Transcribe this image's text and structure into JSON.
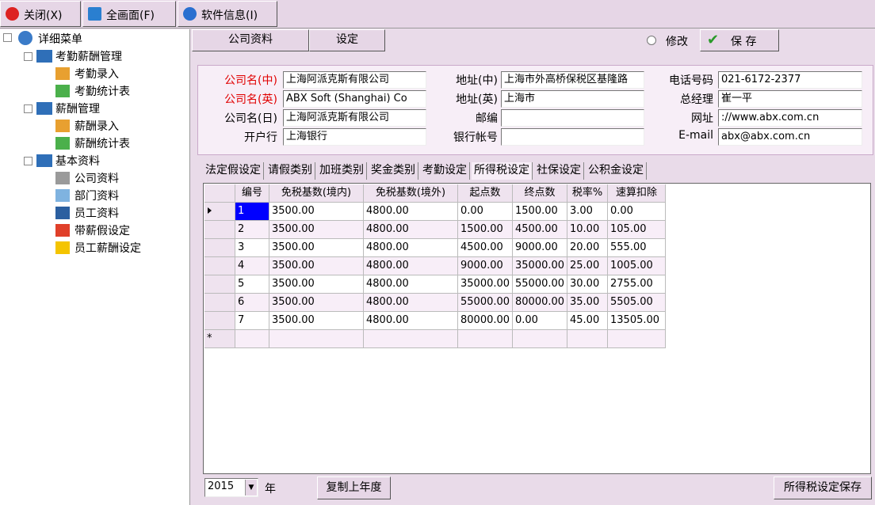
{
  "toolbar": [
    "关闭(X)",
    "全画面(F)",
    "软件信息(I)"
  ],
  "tree": {
    "root": "详细菜单",
    "groups": [
      {
        "label": "考勤薪酬管理",
        "items": [
          "考勤录入",
          "考勤统计表"
        ]
      },
      {
        "label": "薪酬管理",
        "items": [
          "薪酬录入",
          "薪酬统计表"
        ]
      },
      {
        "label": "基本资料",
        "items": [
          "公司资料",
          "部门资料",
          "员工资料",
          "带薪假设定",
          "员工薪酬设定"
        ]
      }
    ]
  },
  "top_tabs": [
    "公司资料",
    "设定"
  ],
  "modify": "修改",
  "save": "保 存",
  "company": {
    "required_color": "#e00000",
    "columns": [
      [
        {
          "label": "公司名(中)",
          "value": "上海阿派克斯有限公司",
          "required": true
        },
        {
          "label": "公司名(英)",
          "value": "ABX Soft (Shanghai) Co",
          "required": true
        },
        {
          "label": "公司名(日)",
          "value": "上海阿派克斯有限公司"
        },
        {
          "label": "开户行",
          "value": "上海银行"
        }
      ],
      [
        {
          "label": "地址(中)",
          "value": "上海市外高桥保税区基隆路"
        },
        {
          "label": "地址(英)",
          "value": "上海市"
        },
        {
          "label": "邮编"
        },
        {
          "label": "银行帐号"
        }
      ],
      [
        {
          "label": "电话号码",
          "value": "021-6172-2377"
        },
        {
          "label": "总经理",
          "value": "崔一平"
        },
        {
          "label": "网址",
          "value": "://www.abx.com.cn"
        },
        {
          "label": "E-mail",
          "value": "abx@abx.com.cn"
        }
      ]
    ]
  },
  "tabs": [
    "法定假设定",
    "请假类别",
    "加班类别",
    "奖金类别",
    "考勤设定",
    "所得税设定",
    "社保设定",
    "公积金设定"
  ],
  "active_tab": 5,
  "table": {
    "columns": [
      "编号",
      "免税基数(境内)",
      "免税基数(境外)",
      "起点数",
      "终点数",
      "税率%",
      "速算扣除"
    ],
    "rows": [
      [
        "1",
        "3500.00",
        "4800.00",
        "0.00",
        "1500.00",
        "3.00",
        "0.00"
      ],
      [
        "2",
        "3500.00",
        "4800.00",
        "1500.00",
        "4500.00",
        "10.00",
        "105.00"
      ],
      [
        "3",
        "3500.00",
        "4800.00",
        "4500.00",
        "9000.00",
        "20.00",
        "555.00"
      ],
      [
        "4",
        "3500.00",
        "4800.00",
        "9000.00",
        "35000.00",
        "25.00",
        "1005.00"
      ],
      [
        "5",
        "3500.00",
        "4800.00",
        "35000.00",
        "55000.00",
        "30.00",
        "2755.00"
      ],
      [
        "6",
        "3500.00",
        "4800.00",
        "55000.00",
        "80000.00",
        "35.00",
        "5505.00"
      ],
      [
        "7",
        "3500.00",
        "4800.00",
        "80000.00",
        "0.00",
        "45.00",
        "13505.00"
      ]
    ],
    "new_row_marker": "*"
  },
  "year": "2015",
  "year_unit": "年",
  "copy_button": "复制上年度",
  "save_tax_button": "所得税设定保存"
}
